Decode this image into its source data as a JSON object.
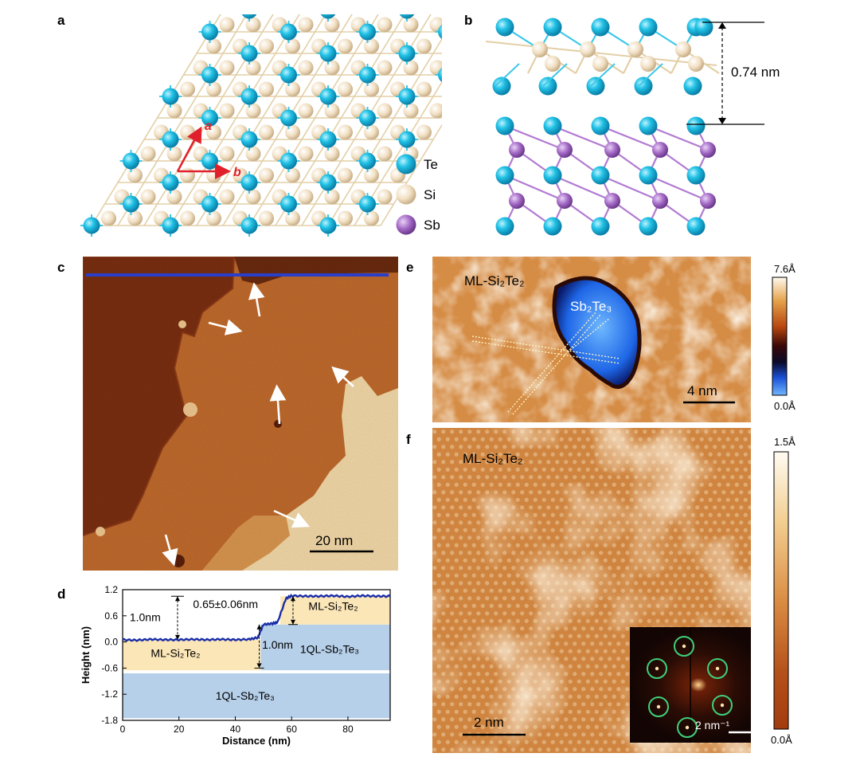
{
  "panels": {
    "a": {
      "letter": "a",
      "vector_a": "a",
      "vector_b": "b",
      "legend": [
        {
          "label": "Te",
          "color": "#1ab8dc"
        },
        {
          "label": "Si",
          "color": "#f3e2c6"
        },
        {
          "label": "Sb",
          "color": "#a56bc7"
        }
      ]
    },
    "b": {
      "letter": "b",
      "spacing_label": "0.74 nm"
    },
    "c": {
      "letter": "c",
      "scale_bar": "20 nm"
    },
    "d": {
      "letter": "d",
      "region_labels": {
        "ml_left": "ML-Si₂Te₂",
        "ml_right": "ML-Si₂Te₂",
        "ql_right": "1QL-Sb₂Te₃",
        "ql_bottom": "1QL-Sb₂Te₃"
      },
      "annotations": {
        "left_step": "1.0nm",
        "top_step": "0.65±0.06nm",
        "mid_step": "1.0nm"
      },
      "chart_data": {
        "type": "line",
        "xlabel": "Distance (nm)",
        "ylabel": "Height (nm)",
        "xlim": [
          0,
          95
        ],
        "ylim": [
          -1.8,
          1.2
        ],
        "xticks": [
          0,
          20,
          40,
          60,
          80
        ],
        "yticks": [
          1.2,
          0.6,
          0.0,
          -0.6,
          -1.2,
          -1.8
        ],
        "series": [
          {
            "x": [
              0,
              5,
              10,
              15,
              20,
              25,
              30,
              35,
              40,
              45,
              48,
              50,
              53,
              55,
              58,
              60,
              65,
              70,
              75,
              80,
              85,
              90,
              95
            ],
            "values": [
              0.05,
              0.04,
              0.06,
              0.05,
              0.05,
              0.06,
              0.05,
              0.06,
              0.05,
              0.06,
              0.1,
              0.4,
              0.42,
              0.45,
              1.0,
              1.06,
              1.05,
              1.05,
              1.06,
              1.04,
              1.06,
              1.05,
              1.05
            ],
            "color": "#1a2ea8"
          }
        ]
      }
    },
    "e": {
      "letter": "e",
      "label_main": "ML-Si₂Te₂",
      "label_island": "Sb₂Te₃",
      "scale_bar": "4 nm",
      "colorbar_max": "7.6Å",
      "colorbar_min": "0.0Å"
    },
    "f": {
      "letter": "f",
      "label_main": "ML-Si₂Te₂",
      "scale_bar": "2 nm",
      "inset_scale_bar": "2 nm⁻¹",
      "colorbar_max": "1.5Å",
      "colorbar_min": "0.0Å"
    }
  }
}
